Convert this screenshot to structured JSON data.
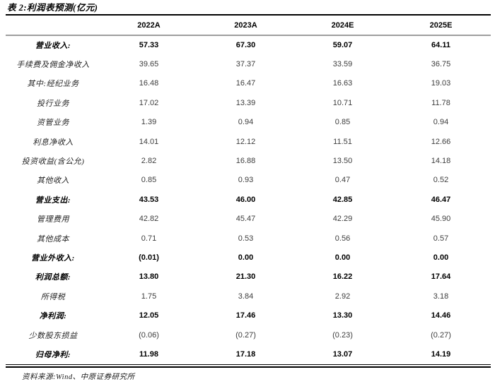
{
  "title": "表 2:利润表预测(亿元)",
  "table": {
    "columns": [
      "",
      "2022A",
      "2023A",
      "2024E",
      "2025E"
    ],
    "rows": [
      {
        "label": "营业收入:",
        "bold": true,
        "values": [
          "57.33",
          "67.30",
          "59.07",
          "64.11"
        ]
      },
      {
        "label": "手续费及佣金净收入",
        "bold": false,
        "values": [
          "39.65",
          "37.37",
          "33.59",
          "36.75"
        ]
      },
      {
        "label": "其中:经纪业务",
        "bold": false,
        "values": [
          "16.48",
          "16.47",
          "16.63",
          "19.03"
        ]
      },
      {
        "label": "投行业务",
        "bold": false,
        "values": [
          "17.02",
          "13.39",
          "10.71",
          "11.78"
        ]
      },
      {
        "label": "资管业务",
        "bold": false,
        "values": [
          "1.39",
          "0.94",
          "0.85",
          "0.94"
        ]
      },
      {
        "label": "利息净收入",
        "bold": false,
        "values": [
          "14.01",
          "12.12",
          "11.51",
          "12.66"
        ]
      },
      {
        "label": "投资收益(含公允)",
        "bold": false,
        "values": [
          "2.82",
          "16.88",
          "13.50",
          "14.18"
        ]
      },
      {
        "label": "其他收入",
        "bold": false,
        "values": [
          "0.85",
          "0.93",
          "0.47",
          "0.52"
        ]
      },
      {
        "label": "营业支出:",
        "bold": true,
        "values": [
          "43.53",
          "46.00",
          "42.85",
          "46.47"
        ]
      },
      {
        "label": "管理费用",
        "bold": false,
        "values": [
          "42.82",
          "45.47",
          "42.29",
          "45.90"
        ]
      },
      {
        "label": "其他成本",
        "bold": false,
        "values": [
          "0.71",
          "0.53",
          "0.56",
          "0.57"
        ]
      },
      {
        "label": "营业外收入:",
        "bold": true,
        "values": [
          "(0.01)",
          "0.00",
          "0.00",
          "0.00"
        ]
      },
      {
        "label": "利润总额:",
        "bold": true,
        "values": [
          "13.80",
          "21.30",
          "16.22",
          "17.64"
        ]
      },
      {
        "label": "所得税",
        "bold": false,
        "values": [
          "1.75",
          "3.84",
          "2.92",
          "3.18"
        ]
      },
      {
        "label": "净利润:",
        "bold": true,
        "values": [
          "12.05",
          "17.46",
          "13.30",
          "14.46"
        ]
      },
      {
        "label": "少数股东损益",
        "bold": false,
        "values": [
          "(0.06)",
          "(0.27)",
          "(0.23)",
          "(0.27)"
        ]
      },
      {
        "label": "归母净利:",
        "bold": true,
        "values": [
          "11.98",
          "17.18",
          "13.07",
          "14.19"
        ]
      }
    ]
  },
  "footer": {
    "source": "资料来源:Wind、中原证券研究所"
  },
  "colors": {
    "rule": "#000000",
    "header_rule": "#9e9e9e",
    "bold_text": "#000000",
    "regular_text": "#3d3d3d",
    "background": "#ffffff"
  }
}
